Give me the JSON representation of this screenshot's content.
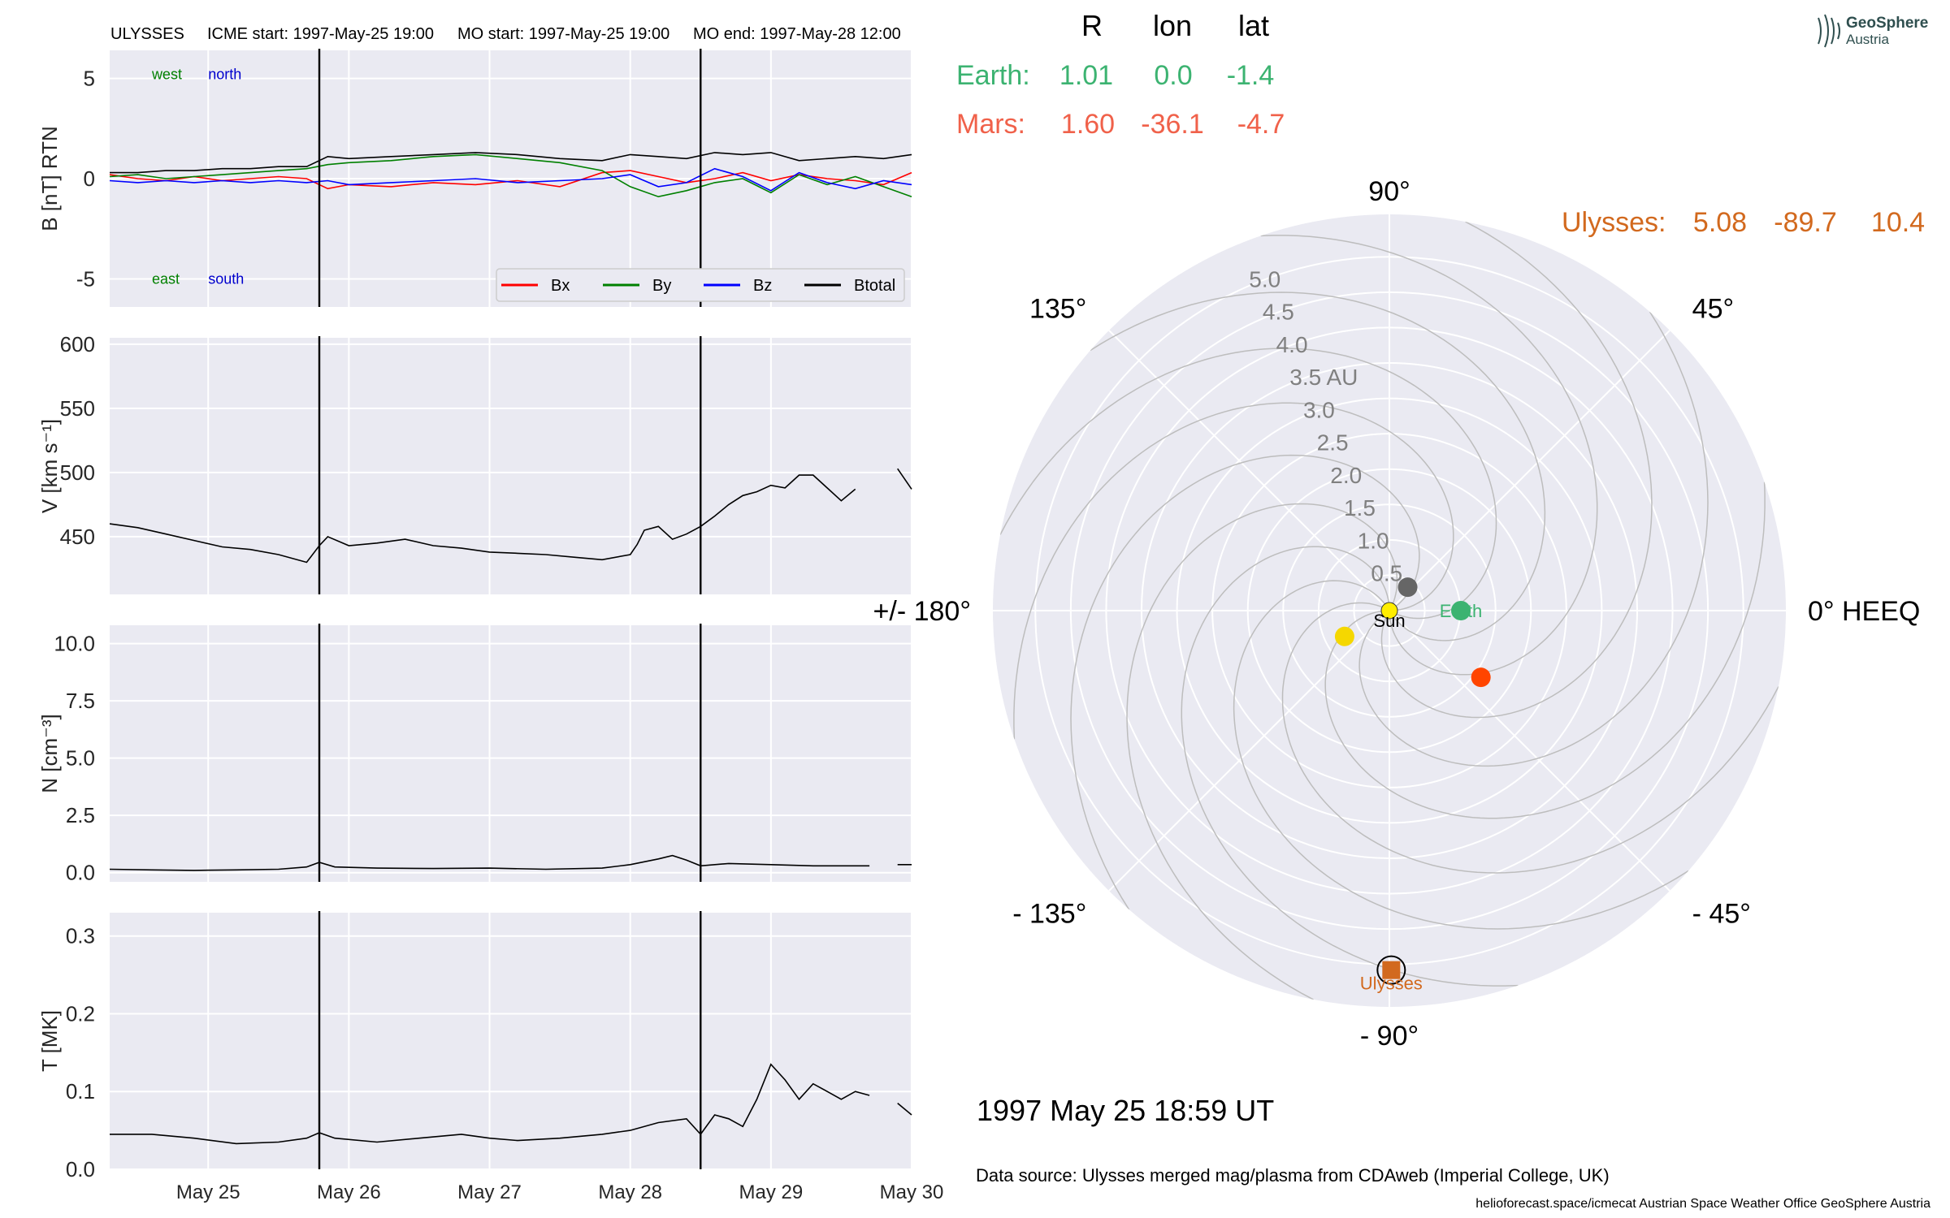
{
  "header": {
    "spacecraft": "ULYSSES",
    "icme_start": "ICME start: 1997-May-25 19:00",
    "mo_start": "MO start: 1997-May-25 19:00",
    "mo_end": "MO end: 1997-May-28 12:00"
  },
  "positions": {
    "columns": [
      "R",
      "lon",
      "lat"
    ],
    "rows": [
      {
        "name": "Earth:",
        "R": "1.01",
        "lon": "0.0",
        "lat": "-1.4",
        "color": "#3cb371"
      },
      {
        "name": "Mars:",
        "R": "1.60",
        "lon": "-36.1",
        "lat": "-4.7",
        "color": "#f0614a"
      },
      {
        "name": "Ulysses:",
        "R": "5.08",
        "lon": "-89.7",
        "lat": "10.4",
        "color": "#d2691e"
      }
    ]
  },
  "logo": {
    "line1": "GeoSphere",
    "line2": "Austria"
  },
  "date_label": "1997 May 25  18:59 UT",
  "data_source": "Data source: Ulysses merged mag/plasma from CDAweb (Imperial College, UK)",
  "footer": "helioforecast.space/icmecat   Austrian Space Weather Office   GeoSphere Austria",
  "colors": {
    "panel_bg": "#eaeaf2",
    "bx": "#ff0000",
    "by": "#008000",
    "bz": "#0000ff",
    "bt": "#000000"
  },
  "chart_data": [
    {
      "type": "line",
      "ylabel": "B [nT] RTN",
      "ylim": [
        -6.4,
        6.4
      ],
      "yticks": [
        -5,
        0,
        5
      ],
      "xlim": [
        24.3,
        30.0
      ],
      "vlines": [
        25.79,
        28.5
      ],
      "annotations": [
        {
          "text": "west",
          "color": "#008000",
          "x": 24.6,
          "y": 5.2
        },
        {
          "text": "north",
          "color": "#0000cd",
          "x": 25.0,
          "y": 5.2
        },
        {
          "text": "east",
          "color": "#008000",
          "x": 24.6,
          "y": -5.0
        },
        {
          "text": "south",
          "color": "#0000cd",
          "x": 25.0,
          "y": -5.0
        }
      ],
      "legend": [
        "Bx",
        "By",
        "Bz",
        "Btotal"
      ],
      "series": [
        {
          "name": "Bx",
          "color": "#ff0000",
          "x": [
            24.3,
            24.5,
            24.7,
            24.9,
            25.1,
            25.3,
            25.5,
            25.7,
            25.85,
            26.0,
            26.3,
            26.6,
            26.9,
            27.2,
            27.5,
            27.8,
            28.0,
            28.2,
            28.4,
            28.6,
            28.8,
            29.0,
            29.2,
            29.4,
            29.6,
            29.8,
            30.0
          ],
          "y": [
            0.2,
            0.0,
            -0.1,
            0.1,
            -0.1,
            0.0,
            0.1,
            0.0,
            -0.5,
            -0.3,
            -0.4,
            -0.2,
            -0.3,
            -0.1,
            -0.4,
            0.3,
            0.4,
            0.1,
            -0.2,
            0.0,
            0.3,
            -0.1,
            0.2,
            0.0,
            -0.1,
            -0.3,
            0.3
          ]
        },
        {
          "name": "By",
          "color": "#008000",
          "x": [
            24.3,
            24.5,
            24.7,
            24.9,
            25.1,
            25.3,
            25.5,
            25.7,
            25.85,
            26.0,
            26.3,
            26.6,
            26.9,
            27.2,
            27.5,
            27.8,
            28.0,
            28.2,
            28.4,
            28.6,
            28.8,
            29.0,
            29.2,
            29.4,
            29.6,
            29.8,
            30.0
          ],
          "y": [
            0.1,
            0.2,
            0.0,
            0.1,
            0.2,
            0.3,
            0.4,
            0.5,
            0.7,
            0.8,
            0.9,
            1.1,
            1.2,
            1.0,
            0.8,
            0.4,
            -0.4,
            -0.9,
            -0.6,
            -0.2,
            0.0,
            -0.7,
            0.2,
            -0.3,
            0.1,
            -0.4,
            -0.9
          ]
        },
        {
          "name": "Bz",
          "color": "#0000ff",
          "x": [
            24.3,
            24.5,
            24.7,
            24.9,
            25.1,
            25.3,
            25.5,
            25.7,
            25.85,
            26.0,
            26.3,
            26.6,
            26.9,
            27.2,
            27.5,
            27.8,
            28.0,
            28.2,
            28.4,
            28.6,
            28.8,
            29.0,
            29.2,
            29.4,
            29.6,
            29.8,
            30.0
          ],
          "y": [
            -0.1,
            -0.2,
            -0.1,
            -0.2,
            -0.1,
            -0.2,
            -0.1,
            -0.2,
            -0.1,
            -0.3,
            -0.2,
            -0.1,
            0.0,
            -0.2,
            -0.1,
            0.0,
            0.2,
            -0.4,
            -0.2,
            0.5,
            0.1,
            -0.6,
            0.3,
            -0.2,
            -0.5,
            -0.1,
            -0.3
          ]
        },
        {
          "name": "Btotal",
          "color": "#000000",
          "x": [
            24.3,
            24.5,
            24.7,
            24.9,
            25.1,
            25.3,
            25.5,
            25.7,
            25.85,
            26.0,
            26.3,
            26.6,
            26.9,
            27.2,
            27.5,
            27.8,
            28.0,
            28.2,
            28.4,
            28.6,
            28.8,
            29.0,
            29.2,
            29.4,
            29.6,
            29.8,
            30.0
          ],
          "y": [
            0.3,
            0.3,
            0.4,
            0.4,
            0.5,
            0.5,
            0.6,
            0.6,
            1.1,
            1.0,
            1.1,
            1.2,
            1.3,
            1.2,
            1.0,
            0.9,
            1.2,
            1.1,
            1.0,
            1.3,
            1.2,
            1.3,
            0.9,
            1.0,
            1.1,
            1.0,
            1.2
          ]
        }
      ]
    },
    {
      "type": "line",
      "ylabel": "V [km s⁻¹]",
      "ylim": [
        405,
        605
      ],
      "yticks": [
        450,
        500,
        550,
        600
      ],
      "xlim": [
        24.3,
        30.0
      ],
      "vlines": [
        25.79,
        28.5
      ],
      "series": [
        {
          "name": "",
          "color": "#000000",
          "x": [
            24.3,
            24.5,
            24.7,
            24.9,
            25.1,
            25.3,
            25.5,
            25.7,
            25.79,
            25.85,
            26.0,
            26.2,
            26.4,
            26.6,
            26.8,
            27.0,
            27.2,
            27.4,
            27.6,
            27.8,
            28.0,
            28.05,
            28.1,
            28.2,
            28.3,
            28.4,
            28.5,
            28.6,
            28.7,
            28.8,
            28.9,
            29.0,
            29.1,
            29.2,
            29.3,
            29.4,
            29.5,
            29.6,
            29.7
          ],
          "y": [
            460,
            457,
            452,
            447,
            442,
            440,
            436,
            430,
            443,
            450,
            443,
            445,
            448,
            443,
            441,
            438,
            437,
            436,
            434,
            432,
            436,
            444,
            455,
            458,
            448,
            452,
            458,
            466,
            475,
            482,
            485,
            490,
            488,
            498,
            498,
            488,
            478,
            487,
            null
          ]
        },
        {
          "name": "",
          "color": "#000000",
          "x": [
            29.9,
            30.0
          ],
          "y": [
            503,
            487
          ]
        }
      ]
    },
    {
      "type": "line",
      "ylabel": "N [cm⁻³]",
      "ylim": [
        -0.4,
        10.8
      ],
      "yticks": [
        0.0,
        2.5,
        5.0,
        7.5,
        10.0
      ],
      "xlim": [
        24.3,
        30.0
      ],
      "vlines": [
        25.79,
        28.5
      ],
      "series": [
        {
          "name": "",
          "color": "#000000",
          "x": [
            24.3,
            24.6,
            24.9,
            25.2,
            25.5,
            25.7,
            25.79,
            25.9,
            26.2,
            26.6,
            27.0,
            27.4,
            27.8,
            28.0,
            28.2,
            28.3,
            28.4,
            28.5,
            28.7,
            29.0,
            29.3,
            29.5,
            29.7
          ],
          "y": [
            0.15,
            0.12,
            0.1,
            0.12,
            0.15,
            0.25,
            0.45,
            0.25,
            0.2,
            0.18,
            0.2,
            0.15,
            0.2,
            0.35,
            0.6,
            0.75,
            0.55,
            0.3,
            0.4,
            0.35,
            0.3,
            0.3,
            0.3
          ]
        },
        {
          "name": "",
          "color": "#000000",
          "x": [
            29.9,
            30.0
          ],
          "y": [
            0.35,
            0.35
          ]
        }
      ]
    },
    {
      "type": "line",
      "ylabel": "T [MK]",
      "ylim": [
        0.0,
        0.33
      ],
      "yticks": [
        0.0,
        0.1,
        0.2,
        0.3
      ],
      "xlim": [
        24.3,
        30.0
      ],
      "vlines": [
        25.79,
        28.5
      ],
      "xticks": [
        {
          "v": 25,
          "label": "May 25"
        },
        {
          "v": 26,
          "label": "May 26"
        },
        {
          "v": 27,
          "label": "May 27"
        },
        {
          "v": 28,
          "label": "May 28"
        },
        {
          "v": 29,
          "label": "May 29"
        },
        {
          "v": 30,
          "label": "May 30"
        }
      ],
      "series": [
        {
          "name": "",
          "color": "#000000",
          "x": [
            24.3,
            24.6,
            24.9,
            25.2,
            25.5,
            25.7,
            25.79,
            25.9,
            26.2,
            26.5,
            26.8,
            27.0,
            27.2,
            27.5,
            27.8,
            28.0,
            28.2,
            28.4,
            28.5,
            28.6,
            28.7,
            28.8,
            28.9,
            29.0,
            29.1,
            29.2,
            29.3,
            29.4,
            29.5,
            29.6,
            29.7
          ],
          "y": [
            0.045,
            0.045,
            0.04,
            0.033,
            0.035,
            0.04,
            0.047,
            0.04,
            0.035,
            0.04,
            0.045,
            0.04,
            0.037,
            0.04,
            0.045,
            0.05,
            0.06,
            0.065,
            0.045,
            0.07,
            0.065,
            0.055,
            0.09,
            0.135,
            0.115,
            0.09,
            0.11,
            0.1,
            0.09,
            0.1,
            0.095
          ]
        },
        {
          "name": "",
          "color": "#000000",
          "x": [
            29.9,
            30.0
          ],
          "y": [
            0.085,
            0.07
          ]
        }
      ]
    },
    {
      "type": "scatter",
      "subtype": "polar",
      "center_label": "Sun",
      "angle_labels": [
        {
          "deg": 90,
          "label": "90°"
        },
        {
          "deg": 45,
          "label": "45°"
        },
        {
          "deg": 0,
          "label": "0° HEEQ"
        },
        {
          "deg": -45,
          "label": "- 45°"
        },
        {
          "deg": -90,
          "label": "- 90°"
        },
        {
          "deg": -135,
          "label": "- 135°"
        },
        {
          "deg": 180,
          "label": "+/- 180°"
        },
        {
          "deg": 135,
          "label": "135°"
        }
      ],
      "radial_ticks": [
        {
          "r": 0.5,
          "label": "0.5"
        },
        {
          "r": 1.0,
          "label": "1.0"
        },
        {
          "r": 1.5,
          "label": "1.5"
        },
        {
          "r": 2.0,
          "label": "2.0"
        },
        {
          "r": 2.5,
          "label": "2.5"
        },
        {
          "r": 3.0,
          "label": "3.0"
        },
        {
          "r": 3.5,
          "label": "3.5 AU"
        },
        {
          "r": 4.0,
          "label": "4.0"
        },
        {
          "r": 4.5,
          "label": "4.5"
        },
        {
          "r": 5.0,
          "label": "5.0"
        }
      ],
      "rmax": 5.6,
      "points": [
        {
          "r": 0.0,
          "lon": 0.0,
          "color": "#ffee00",
          "label": "Sun",
          "label_color": "#000000"
        },
        {
          "r": 1.01,
          "lon": 0.0,
          "color": "#3cb371",
          "label": "Earth",
          "label_color": "#3cb371"
        },
        {
          "r": 1.6,
          "lon": -36.1,
          "color": "#ff4500",
          "label": "",
          "label_color": ""
        },
        {
          "r": 0.42,
          "lon": 52.0,
          "color": "#666666",
          "label": "",
          "label_color": ""
        },
        {
          "r": 0.73,
          "lon": -150.0,
          "color": "#f5d700",
          "label": "",
          "label_color": ""
        },
        {
          "r": 5.08,
          "lon": -89.7,
          "color": "#d2691e",
          "label": "Ulysses",
          "label_color": "#d2691e",
          "marker": "square"
        }
      ]
    }
  ]
}
